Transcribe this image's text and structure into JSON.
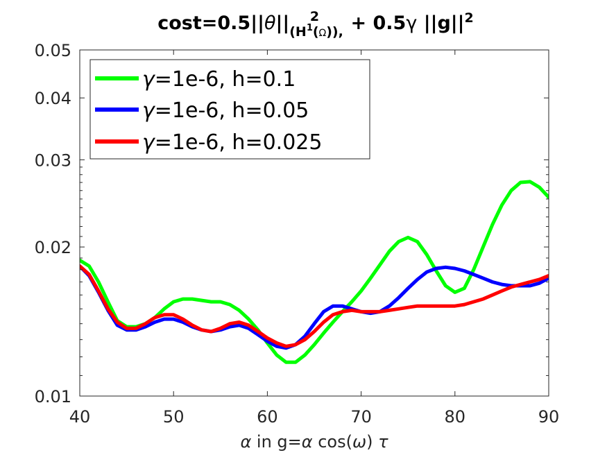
{
  "chart_data": {
    "type": "line",
    "title": {
      "part1": "cost=0.5||",
      "theta": "θ",
      "part2": "||",
      "sub_H": "(H",
      "sub_1": "1",
      "sub_open": "(",
      "sub_omega": "Ω",
      "sub_close": ")),",
      "sup_2": "2",
      "part3": " + 0.5",
      "gamma": "γ",
      "part4": " ||g||",
      "sup_2b": "2"
    },
    "xlabel": {
      "alpha": "α",
      "text1": " in g=",
      "alpha2": "α",
      "text2": " cos(",
      "omega": "ω",
      "text3": ") ",
      "tau": "τ"
    },
    "ylabel": "",
    "x_scale": "linear",
    "y_scale": "log",
    "xlim": [
      40,
      90
    ],
    "ylim": [
      0.01,
      0.05
    ],
    "x_ticks": [
      40,
      50,
      60,
      70,
      80,
      90
    ],
    "x_tick_labels": [
      "40",
      "50",
      "60",
      "70",
      "80",
      "90"
    ],
    "y_ticks": [
      0.01,
      0.02,
      0.03,
      0.04,
      0.05
    ],
    "y_tick_labels": [
      "0.01",
      "0.02",
      "0.03",
      "0.04",
      "0.05"
    ],
    "grid": false,
    "legend_position": "top-left",
    "series": [
      {
        "name": "γ=1e-6, h=0.1",
        "label_gamma": "γ",
        "label_rest": "=1e-6, h=0.1",
        "color": "#00ff00",
        "x": [
          40,
          41,
          42,
          43,
          44,
          45,
          46,
          47,
          48,
          49,
          50,
          51,
          52,
          53,
          54,
          55,
          56,
          57,
          58,
          59,
          60,
          61,
          62,
          63,
          64,
          65,
          66,
          67,
          68,
          69,
          70,
          71,
          72,
          73,
          74,
          75,
          76,
          77,
          78,
          79,
          80,
          81,
          82,
          83,
          84,
          85,
          86,
          87,
          88,
          89,
          90
        ],
        "y": [
          0.0188,
          0.0183,
          0.017,
          0.0155,
          0.0142,
          0.0138,
          0.0138,
          0.014,
          0.0144,
          0.015,
          0.0155,
          0.0157,
          0.0157,
          0.0156,
          0.0155,
          0.0155,
          0.0153,
          0.0149,
          0.0143,
          0.0136,
          0.0128,
          0.0121,
          0.0117,
          0.0117,
          0.0121,
          0.0127,
          0.0134,
          0.0141,
          0.0148,
          0.0155,
          0.0163,
          0.0173,
          0.0184,
          0.0196,
          0.0205,
          0.0209,
          0.0205,
          0.0193,
          0.0179,
          0.0167,
          0.0162,
          0.0165,
          0.018,
          0.02,
          0.0222,
          0.0243,
          0.026,
          0.027,
          0.0271,
          0.0264,
          0.0252
        ]
      },
      {
        "name": "γ=1e-6, h=0.05",
        "label_gamma": "γ",
        "label_rest": "=1e-6, h=0.05",
        "color": "#0000ff",
        "x": [
          40,
          41,
          42,
          43,
          44,
          45,
          46,
          47,
          48,
          49,
          50,
          51,
          52,
          53,
          54,
          55,
          56,
          57,
          58,
          59,
          60,
          61,
          62,
          63,
          64,
          65,
          66,
          67,
          68,
          69,
          70,
          71,
          72,
          73,
          74,
          75,
          76,
          77,
          78,
          79,
          80,
          81,
          82,
          83,
          84,
          85,
          86,
          87,
          88,
          89,
          90
        ],
        "y": [
          0.0183,
          0.0175,
          0.0162,
          0.0149,
          0.0139,
          0.0136,
          0.0136,
          0.0138,
          0.0141,
          0.0143,
          0.0143,
          0.0141,
          0.0138,
          0.0136,
          0.0135,
          0.0136,
          0.0138,
          0.0139,
          0.0137,
          0.0133,
          0.0129,
          0.0126,
          0.0125,
          0.0127,
          0.0132,
          0.014,
          0.0148,
          0.0152,
          0.0152,
          0.015,
          0.0148,
          0.0147,
          0.0148,
          0.0152,
          0.0158,
          0.0165,
          0.0172,
          0.0178,
          0.0181,
          0.0182,
          0.0181,
          0.0179,
          0.0176,
          0.0173,
          0.017,
          0.0168,
          0.0167,
          0.0167,
          0.0167,
          0.0169,
          0.0173
        ]
      },
      {
        "name": "γ=1e-6, h=0.025",
        "label_gamma": "γ",
        "label_rest": "=1e-6, h=0.025",
        "color": "#ff0000",
        "x": [
          40,
          41,
          42,
          43,
          44,
          45,
          46,
          47,
          48,
          49,
          50,
          51,
          52,
          53,
          54,
          55,
          56,
          57,
          58,
          59,
          60,
          61,
          62,
          63,
          64,
          65,
          66,
          67,
          68,
          69,
          70,
          71,
          72,
          73,
          74,
          75,
          76,
          77,
          78,
          79,
          80,
          81,
          82,
          83,
          84,
          85,
          86,
          87,
          88,
          89,
          90
        ],
        "y": [
          0.0183,
          0.0176,
          0.0163,
          0.015,
          0.0141,
          0.0137,
          0.0137,
          0.014,
          0.0144,
          0.0146,
          0.0146,
          0.0143,
          0.0139,
          0.0136,
          0.0135,
          0.0137,
          0.014,
          0.0141,
          0.0139,
          0.0135,
          0.0131,
          0.0128,
          0.0126,
          0.0127,
          0.013,
          0.0135,
          0.0141,
          0.0146,
          0.0148,
          0.0149,
          0.0148,
          0.0148,
          0.0148,
          0.0149,
          0.015,
          0.0151,
          0.0152,
          0.0152,
          0.0152,
          0.0152,
          0.0152,
          0.0153,
          0.0155,
          0.0157,
          0.016,
          0.0163,
          0.0166,
          0.0168,
          0.017,
          0.0172,
          0.0175
        ]
      }
    ]
  }
}
